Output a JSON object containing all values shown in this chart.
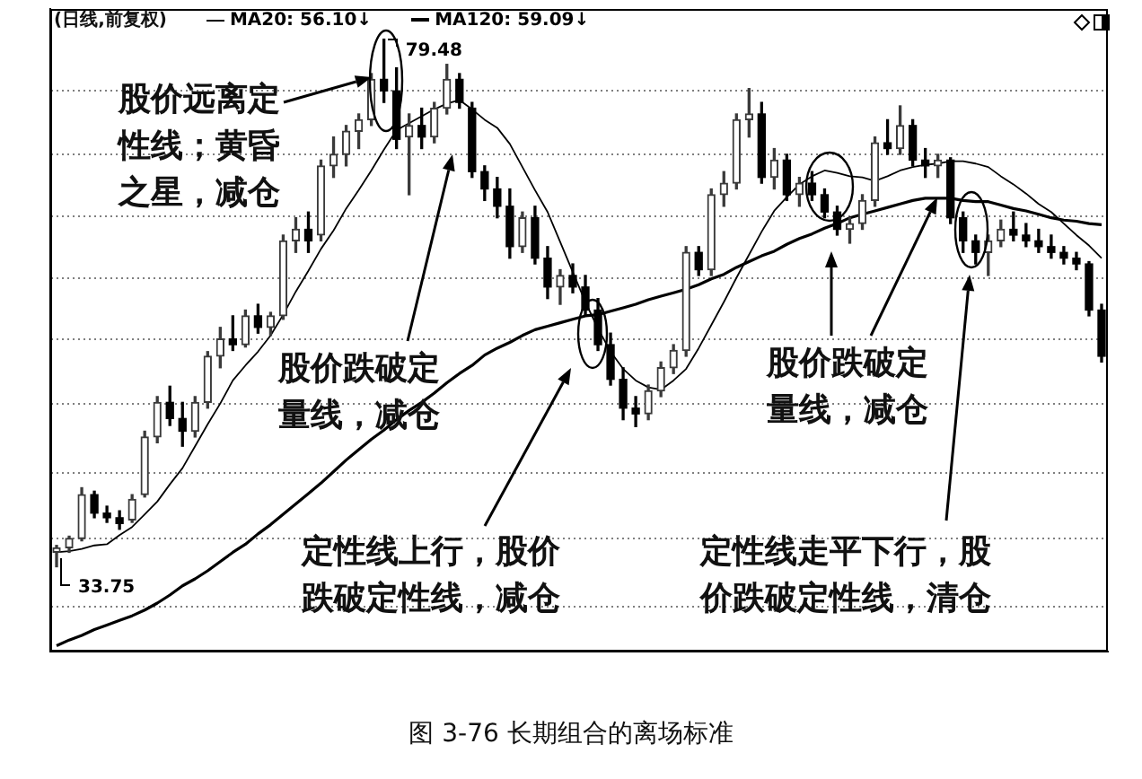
{
  "chart_data": {
    "type": "candlestick",
    "title": "(日线,前复权)",
    "categories": [
      null,
      null,
      null,
      null,
      null,
      null,
      null,
      null,
      null,
      null,
      null,
      null,
      null,
      null,
      null,
      null,
      null,
      null,
      null,
      null,
      null,
      null,
      null,
      null,
      null,
      null,
      null,
      null,
      null,
      null,
      null,
      null,
      null,
      null,
      null,
      null,
      null,
      null,
      null,
      null,
      null,
      null,
      null,
      null,
      null,
      null,
      null,
      null,
      null,
      null,
      null,
      null,
      null,
      null,
      null,
      null,
      null,
      null,
      null,
      null,
      null,
      null,
      null,
      null,
      null,
      null,
      null,
      null,
      null,
      null,
      null,
      null,
      null,
      null,
      null,
      null,
      null,
      null,
      null,
      null,
      null,
      null,
      null,
      null
    ],
    "ohlc": [
      [
        35.0,
        35.6,
        33.75,
        35.4
      ],
      [
        35.4,
        36.4,
        35.0,
        36.2
      ],
      [
        36.2,
        40.6,
        36.0,
        40.0
      ],
      [
        40.0,
        40.3,
        38.0,
        38.4
      ],
      [
        38.4,
        39.0,
        37.6,
        38.0
      ],
      [
        38.0,
        38.6,
        37.0,
        37.5
      ],
      [
        37.8,
        40.0,
        37.6,
        39.6
      ],
      [
        40.0,
        45.5,
        39.8,
        45.0
      ],
      [
        45.0,
        48.5,
        44.5,
        48.0
      ],
      [
        48.0,
        49.4,
        46.0,
        46.6
      ],
      [
        46.6,
        48.0,
        44.2,
        45.5
      ],
      [
        45.5,
        48.5,
        45.0,
        48.0
      ],
      [
        48.0,
        52.4,
        47.5,
        52.0
      ],
      [
        52.0,
        54.5,
        51.0,
        53.5
      ],
      [
        53.5,
        55.5,
        52.5,
        53.0
      ],
      [
        53.0,
        56.0,
        52.8,
        55.5
      ],
      [
        55.5,
        56.5,
        54.0,
        54.5
      ],
      [
        54.5,
        55.8,
        53.8,
        55.5
      ],
      [
        55.5,
        62.5,
        55.2,
        62.0
      ],
      [
        62.0,
        64.0,
        61.0,
        63.0
      ],
      [
        63.0,
        64.5,
        61.0,
        62.0
      ],
      [
        62.5,
        69.0,
        62.0,
        68.5
      ],
      [
        68.5,
        71.0,
        67.5,
        69.5
      ],
      [
        69.5,
        72.0,
        68.5,
        71.5
      ],
      [
        71.5,
        73.0,
        70.0,
        72.5
      ],
      [
        72.5,
        76.5,
        72.0,
        76.0
      ],
      [
        76.0,
        79.48,
        74.0,
        75.0
      ],
      [
        75.0,
        77.0,
        70.0,
        70.8
      ],
      [
        71.0,
        73.0,
        66.0,
        72.0
      ],
      [
        72.0,
        73.5,
        70.0,
        71.0
      ],
      [
        71.0,
        74.0,
        70.5,
        73.5
      ],
      [
        73.5,
        77.3,
        73.0,
        76.0
      ],
      [
        76.0,
        76.5,
        73.5,
        74.0
      ],
      [
        73.5,
        74.0,
        67.5,
        68.0
      ],
      [
        68.0,
        68.5,
        65.5,
        66.5
      ],
      [
        66.5,
        67.5,
        64.0,
        65.0
      ],
      [
        65.0,
        66.5,
        60.5,
        61.5
      ],
      [
        61.5,
        64.5,
        61.0,
        64.0
      ],
      [
        64.0,
        65.0,
        60.0,
        60.5
      ],
      [
        60.5,
        61.5,
        57.0,
        58.0
      ],
      [
        58.0,
        59.5,
        56.5,
        59.0
      ],
      [
        59.0,
        60.0,
        57.5,
        58.0
      ],
      [
        58.0,
        59.0,
        55.5,
        56.0
      ],
      [
        56.0,
        57.0,
        52.5,
        53.0
      ],
      [
        53.0,
        54.0,
        49.5,
        50.0
      ],
      [
        50.0,
        51.0,
        46.5,
        47.5
      ],
      [
        47.5,
        48.5,
        45.9,
        47.0
      ],
      [
        47.0,
        49.5,
        46.5,
        49.0
      ],
      [
        49.0,
        51.5,
        48.5,
        51.0
      ],
      [
        51.0,
        53.0,
        50.5,
        52.5
      ],
      [
        52.5,
        61.5,
        52.0,
        61.0
      ],
      [
        61.0,
        61.5,
        59.0,
        59.5
      ],
      [
        59.5,
        66.5,
        59.0,
        66.0
      ],
      [
        66.0,
        68.0,
        65.0,
        67.0
      ],
      [
        67.0,
        73.0,
        66.5,
        72.5
      ],
      [
        72.5,
        75.2,
        71.0,
        73.0
      ],
      [
        73.0,
        74.0,
        67.0,
        67.5
      ],
      [
        67.5,
        70.0,
        66.5,
        69.0
      ],
      [
        69.0,
        69.5,
        65.5,
        66.0
      ],
      [
        66.0,
        67.5,
        65.0,
        67.0
      ],
      [
        67.0,
        68.0,
        65.5,
        66.0
      ],
      [
        66.0,
        66.5,
        64.0,
        64.5
      ],
      [
        64.5,
        65.0,
        62.5,
        63.0
      ],
      [
        63.0,
        64.0,
        61.8,
        63.5
      ],
      [
        63.5,
        66.0,
        63.0,
        65.5
      ],
      [
        65.5,
        71.0,
        65.0,
        70.5
      ],
      [
        70.5,
        72.5,
        69.5,
        70.0
      ],
      [
        70.0,
        73.7,
        69.5,
        72.0
      ],
      [
        72.0,
        72.5,
        68.5,
        69.0
      ],
      [
        69.0,
        70.0,
        67.5,
        68.5
      ],
      [
        68.5,
        69.5,
        67.5,
        69.0
      ],
      [
        69.0,
        69.2,
        63.5,
        64.0
      ],
      [
        64.0,
        64.5,
        61.0,
        62.0
      ],
      [
        62.0,
        62.5,
        60.0,
        61.0
      ],
      [
        61.0,
        62.5,
        59.0,
        62.0
      ],
      [
        62.0,
        63.8,
        61.5,
        63.0
      ],
      [
        63.0,
        64.5,
        62.0,
        62.5
      ],
      [
        62.5,
        63.5,
        61.5,
        62.0
      ],
      [
        62.0,
        63.0,
        61.0,
        61.5
      ],
      [
        61.5,
        62.5,
        60.5,
        61.0
      ],
      [
        61.0,
        61.5,
        60.0,
        60.5
      ],
      [
        60.5,
        61.0,
        59.5,
        60.0
      ],
      [
        60.0,
        60.2,
        55.5,
        56.0
      ],
      [
        56.0,
        56.5,
        51.5,
        52.0
      ]
    ],
    "series": [
      {
        "name": "MA20: 56.10↓",
        "type": "line",
        "color": "#000000",
        "values": [
          35.0,
          35.1,
          35.3,
          35.6,
          35.7,
          36.5,
          37.2,
          38.3,
          39.4,
          40.9,
          42.3,
          44.2,
          46.1,
          47.9,
          49.9,
          51.2,
          52.4,
          53.8,
          55.6,
          57.6,
          59.4,
          61.3,
          62.9,
          64.8,
          66.4,
          68.1,
          69.9,
          71.6,
          72.2,
          72.8,
          73.4,
          73.9,
          74.2,
          73.4,
          72.5,
          71.8,
          70.4,
          68.4,
          66.4,
          64.5,
          61.9,
          59.3,
          56.7,
          54.4,
          52.4,
          50.9,
          49.9,
          49.3,
          49.1,
          49.9,
          50.9,
          52.7,
          54.7,
          56.7,
          58.8,
          60.8,
          62.8,
          64.6,
          65.8,
          66.9,
          67.6,
          68.1,
          67.9,
          67.6,
          67.5,
          67.2,
          67.6,
          68.1,
          68.4,
          68.6,
          68.7,
          68.9,
          68.9,
          68.7,
          68.4,
          67.6,
          66.9,
          66.1,
          65.2,
          64.5,
          63.5,
          62.5,
          61.6,
          60.5
        ]
      },
      {
        "name": "MA120: 59.09↓",
        "type": "line",
        "color": "#000000",
        "values": [
          26.9,
          27.4,
          27.8,
          28.3,
          28.7,
          29.1,
          29.5,
          30.0,
          30.6,
          31.3,
          32.1,
          32.7,
          33.4,
          34.2,
          35.0,
          35.7,
          36.6,
          37.4,
          38.3,
          39.2,
          40.1,
          41.0,
          42.0,
          43.0,
          43.9,
          44.8,
          45.6,
          46.5,
          47.3,
          48.0,
          48.8,
          49.7,
          50.5,
          51.2,
          52.1,
          52.7,
          53.2,
          53.8,
          54.3,
          54.6,
          54.9,
          55.2,
          55.5,
          55.6,
          55.9,
          56.2,
          56.5,
          56.9,
          57.2,
          57.5,
          57.8,
          58.2,
          58.7,
          59.1,
          59.7,
          60.2,
          60.7,
          61.1,
          61.7,
          62.2,
          62.6,
          63.1,
          63.5,
          64.0,
          64.3,
          64.6,
          64.9,
          65.2,
          65.5,
          65.7,
          65.7,
          65.7,
          65.5,
          65.4,
          65.4,
          65.1,
          64.8,
          64.6,
          64.3,
          64.0,
          63.8,
          63.7,
          63.5,
          63.4
        ]
      }
    ],
    "ylim": [
      26.4,
      82.1
    ],
    "yticks": [
      {
        "value": 30.3,
        "label": null
      },
      {
        "value": 36.2,
        "label": null
      },
      {
        "value": 41.9,
        "label": null
      },
      {
        "value": 47.9,
        "label": null
      },
      {
        "value": 53.5,
        "label": null
      },
      {
        "value": 58.8,
        "label": null
      },
      {
        "value": 64.1,
        "label": null
      },
      {
        "value": 69.5,
        "label": null
      },
      {
        "value": 75.0,
        "label": null
      }
    ],
    "grid": "y",
    "legend": "top left",
    "tick_labels": false,
    "annotations": [
      "79.48",
      "33.75",
      "股价远离定性线；黄昏之星，减仓",
      "股价跌破定量线，减仓",
      "定性线上行，股价跌破定性线，减仓",
      "股价跌破定量线，减仓",
      "定性线走平下行，股价跌破定性线，清仓",
      "图 3-76 长期组合的离场标准"
    ]
  }
}
